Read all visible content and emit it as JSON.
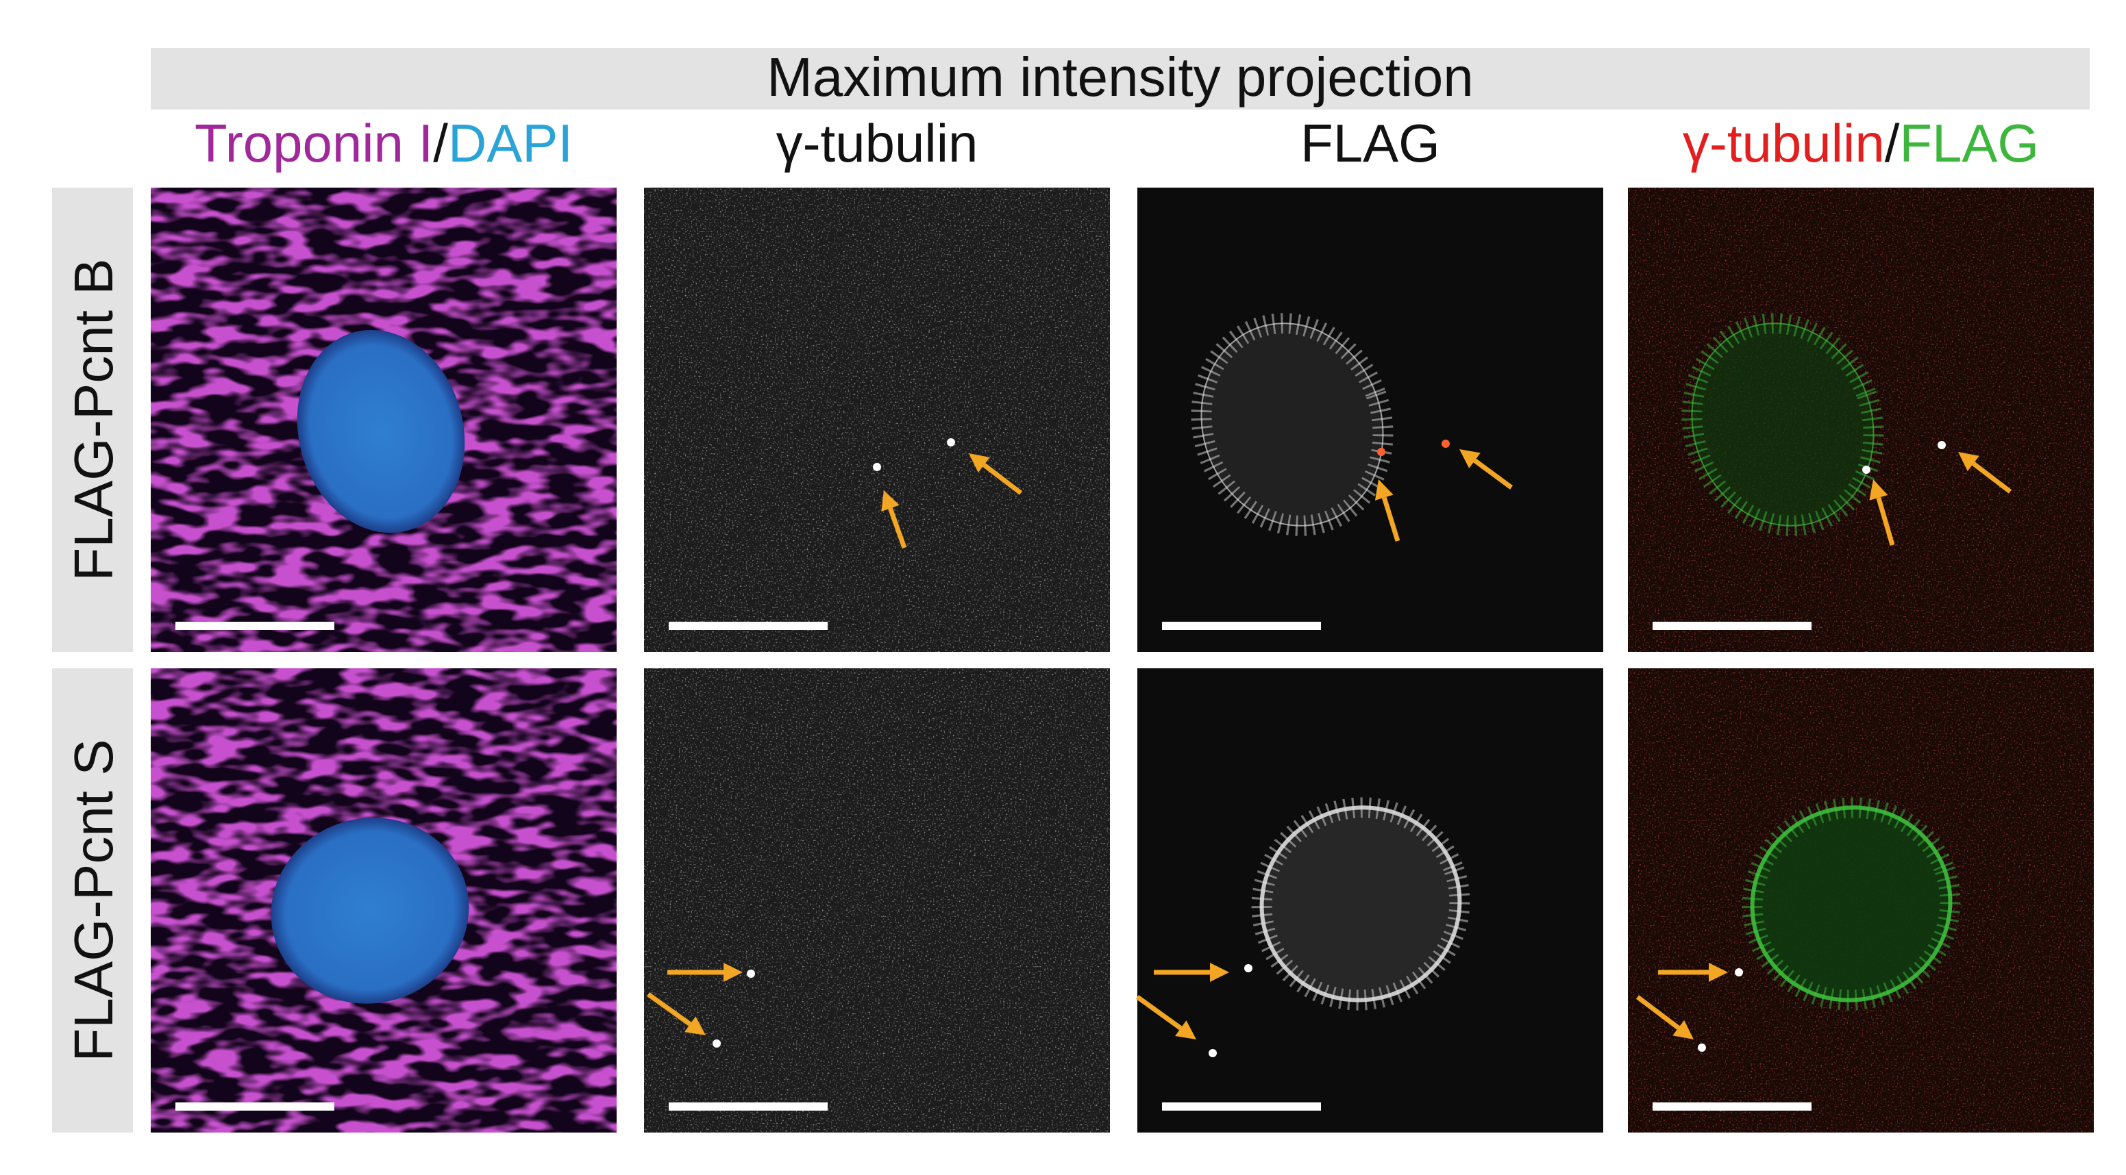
{
  "header": {
    "title": "Maximum intensity projection"
  },
  "column_headers": [
    [
      "Troponin I",
      "/",
      "DAPI"
    ],
    [
      "γ-tubulin"
    ],
    [
      "FLAG"
    ],
    [
      "γ-tubulin",
      "/",
      "FLAG"
    ]
  ],
  "row_labels": [
    "FLAG-Pcnt B",
    "FLAG-Pcnt S"
  ]
}
